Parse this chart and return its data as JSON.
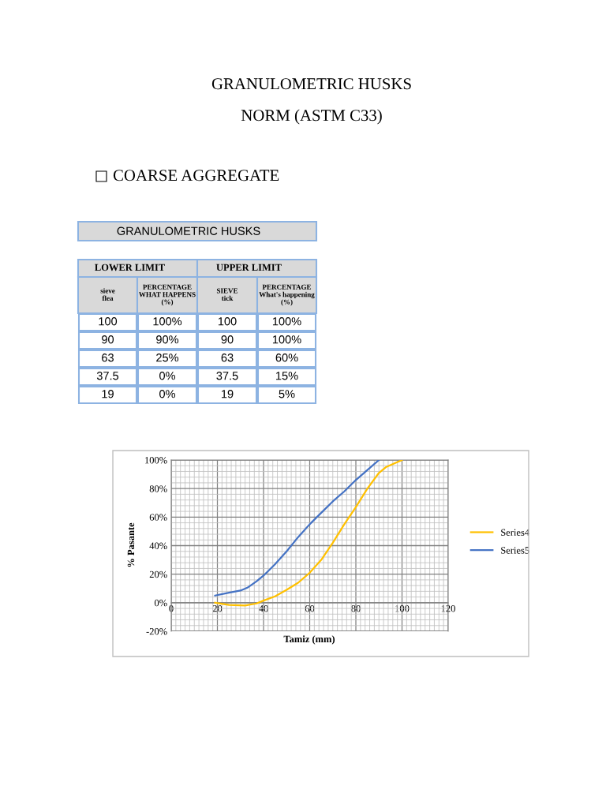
{
  "chart_data": [
    {
      "type": "other",
      "title": "GRANULOMETRIC HUSKS",
      "subtitle": "NORM (ASTM C33)",
      "annotations": [
        "COARSE AGGREGATE"
      ]
    },
    {
      "type": "other",
      "title": "GRANULOMETRIC HUSKS",
      "annotations": [
        "LOWER LIMIT",
        "UPPER LIMIT",
        "sieve\nflea",
        "PERCENTAGE\nWHAT HAPPENS\n(%)",
        "SIEVE\ntick",
        "PERCENTAGE\nWhat's happening\n(%)",
        "100",
        "100%",
        "100",
        "100%",
        "90",
        "90%",
        "90",
        "100%",
        "63",
        "25%",
        "63",
        "60%",
        "37.5",
        "0%",
        "37.5",
        "15%",
        "19",
        "0%",
        "19",
        "5%"
      ]
    },
    {
      "type": "line",
      "xlabel": "Tamiz (mm)",
      "ylabel": "% Pasante",
      "xlim": [
        0,
        120
      ],
      "xticks": [
        0,
        20,
        40,
        60,
        80,
        100,
        120
      ],
      "ylim": [
        -20,
        100
      ],
      "yticks": [
        {
          "value": -20,
          "label": "-20%"
        },
        {
          "value": 0,
          "label": "0%"
        },
        {
          "value": 20,
          "label": "20%"
        },
        {
          "value": 40,
          "label": "40%"
        },
        {
          "value": 60,
          "label": "60%"
        },
        {
          "value": 80,
          "label": "80%"
        },
        {
          "value": 100,
          "label": "100%"
        }
      ],
      "grid": true,
      "legend": "right",
      "marker": "none",
      "line_style": "solid",
      "series": [
        {
          "name": "Series4",
          "color": "#ffc000",
          "x": [
            19,
            25,
            32,
            37,
            40,
            45,
            50,
            55,
            60,
            65,
            70,
            75,
            80,
            85,
            90,
            93,
            100
          ],
          "values": [
            0,
            -1.5,
            -2,
            -0.5,
            1.5,
            4.5,
            9,
            14,
            21,
            30,
            42,
            55,
            67,
            80,
            91,
            95,
            100
          ]
        },
        {
          "name": "Series5",
          "color": "#4472c4",
          "x": [
            19,
            25,
            30,
            33,
            37,
            40,
            45,
            50,
            55,
            60,
            65,
            70,
            75,
            80,
            85,
            90
          ],
          "values": [
            5,
            7,
            8.5,
            10.5,
            15,
            19,
            27,
            36,
            46,
            55,
            63,
            71,
            78,
            86,
            93,
            100
          ]
        }
      ]
    }
  ]
}
